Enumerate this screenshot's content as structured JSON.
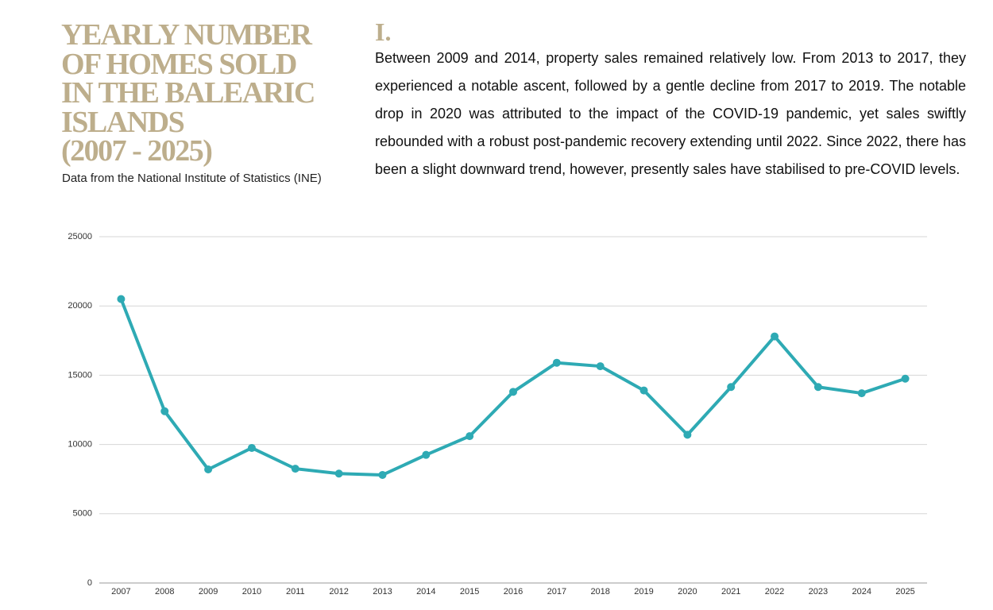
{
  "header": {
    "number": "I.",
    "text": "Between 2009 and 2014, property sales remained relatively low. From 2013 to 2017, they experienced a notable ascent, followed by a gentle decline from 2017 to 2019. The notable drop in 2020 was attributed to the impact of the COVID-19 pandemic, yet sales swiftly rebounded with a robust post-pandemic recovery extending until 2022. Since 2022, there has been a slight downward trend, however, presently sales have stabilised to pre-COVID levels."
  },
  "chart_data": {
    "type": "line",
    "title": "YEARLY NUMBER\nOF HOMES SOLD\nIN THE BALEARIC\nISLANDS\n(2007 - 2025)",
    "subtitle": "Data from the National Institute of Statistics (INE)",
    "categories": [
      "2007",
      "2008",
      "2009",
      "2010",
      "2011",
      "2012",
      "2013",
      "2014",
      "2015",
      "2016",
      "2017",
      "2018",
      "2019",
      "2020",
      "2021",
      "2022",
      "2023",
      "2024",
      "2025"
    ],
    "series": [
      {
        "name": "Homes sold",
        "color": "#2eaab4",
        "values": [
          20500,
          12400,
          8200,
          9750,
          8250,
          7900,
          7800,
          9250,
          10600,
          13800,
          15900,
          15650,
          13900,
          10700,
          14150,
          17800,
          14150,
          13700,
          14750
        ]
      }
    ],
    "ylim": [
      0,
      25000
    ],
    "yticks": [
      0,
      5000,
      10000,
      15000,
      20000,
      25000
    ],
    "grid": true,
    "legend": false
  }
}
